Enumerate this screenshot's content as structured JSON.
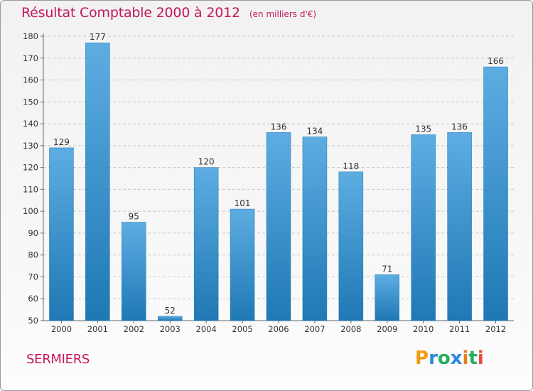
{
  "header": {
    "title": "Résultat Comptable 2000 à 2012",
    "subtitle": "(en milliers d'€)"
  },
  "footer": {
    "place": "SERMIERS",
    "brand": "Proxiti",
    "brand_letters": [
      {
        "char": "P",
        "color": "#f39c12"
      },
      {
        "char": "r",
        "color": "#2e86de"
      },
      {
        "char": "o",
        "color": "#27ae60"
      },
      {
        "char": "x",
        "color": "#2e86de"
      },
      {
        "char": "i",
        "color": "#e67e22"
      },
      {
        "char": "t",
        "color": "#27ae60"
      },
      {
        "char": "i",
        "color": "#e74c3c"
      }
    ]
  },
  "colors": {
    "bar_top": "#5dade2",
    "bar_bottom": "#1f78b4",
    "grid": "#c8c8c8",
    "text": "#333333",
    "accent": "#c2185b"
  },
  "chart_data": {
    "type": "bar",
    "title": "Résultat Comptable 2000 à 2012",
    "subtitle": "(en milliers d'€)",
    "categories": [
      "2000",
      "2001",
      "2002",
      "2003",
      "2004",
      "2005",
      "2006",
      "2007",
      "2008",
      "2009",
      "2010",
      "2011",
      "2012"
    ],
    "values": [
      129,
      177,
      95,
      52,
      120,
      101,
      136,
      134,
      118,
      71,
      135,
      136,
      166
    ],
    "ylim": [
      50,
      180
    ],
    "yticks": [
      50,
      60,
      70,
      80,
      90,
      100,
      110,
      120,
      130,
      140,
      150,
      160,
      170,
      180
    ],
    "xlabel": "",
    "ylabel": "",
    "grid": true
  }
}
